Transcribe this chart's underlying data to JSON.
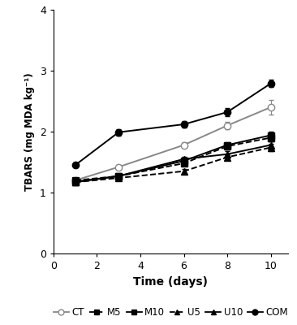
{
  "x": [
    1,
    3,
    6,
    8,
    10
  ],
  "series": {
    "CT": {
      "y": [
        1.2,
        1.42,
        1.78,
        2.1,
        2.4
      ],
      "yerr": [
        0.04,
        0.04,
        0.05,
        0.06,
        0.12
      ],
      "color": "#888888",
      "linestyle": "-",
      "marker": "o",
      "markerfill": "white"
    },
    "M5": {
      "y": [
        1.2,
        1.27,
        1.48,
        1.76,
        1.9
      ],
      "yerr": [
        0.03,
        0.03,
        0.04,
        0.05,
        0.06
      ],
      "color": "#000000",
      "linestyle": "--",
      "marker": "s",
      "markerfill": "#000000"
    },
    "M10": {
      "y": [
        1.18,
        1.27,
        1.52,
        1.78,
        1.94
      ],
      "yerr": [
        0.03,
        0.03,
        0.04,
        0.05,
        0.06
      ],
      "color": "#000000",
      "linestyle": "-",
      "marker": "s",
      "markerfill": "#000000"
    },
    "U5": {
      "y": [
        1.17,
        1.24,
        1.35,
        1.58,
        1.74
      ],
      "yerr": [
        0.03,
        0.03,
        0.04,
        0.05,
        0.06
      ],
      "color": "#000000",
      "linestyle": "--",
      "marker": "^",
      "markerfill": "#000000"
    },
    "U10": {
      "y": [
        1.17,
        1.27,
        1.55,
        1.63,
        1.78
      ],
      "yerr": [
        0.03,
        0.03,
        0.04,
        0.05,
        0.06
      ],
      "color": "#000000",
      "linestyle": "-",
      "marker": "^",
      "markerfill": "#000000"
    },
    "COM": {
      "y": [
        1.45,
        1.99,
        2.12,
        2.32,
        2.79
      ],
      "yerr": [
        0.04,
        0.05,
        0.05,
        0.07,
        0.06
      ],
      "color": "#000000",
      "linestyle": "-",
      "marker": "o",
      "markerfill": "#000000"
    }
  },
  "xlabel": "Time (days)",
  "ylabel": "TBARS (mg MDA kg⁻¹)",
  "xlim": [
    0,
    10.8
  ],
  "ylim": [
    0,
    4
  ],
  "xticks": [
    0,
    2,
    4,
    6,
    8,
    10
  ],
  "yticks": [
    0,
    1,
    2,
    3,
    4
  ],
  "legend_order": [
    "CT",
    "M5",
    "M10",
    "U5",
    "U10",
    "COM"
  ],
  "markersize": 6,
  "linewidth": 1.4,
  "capsize": 2
}
